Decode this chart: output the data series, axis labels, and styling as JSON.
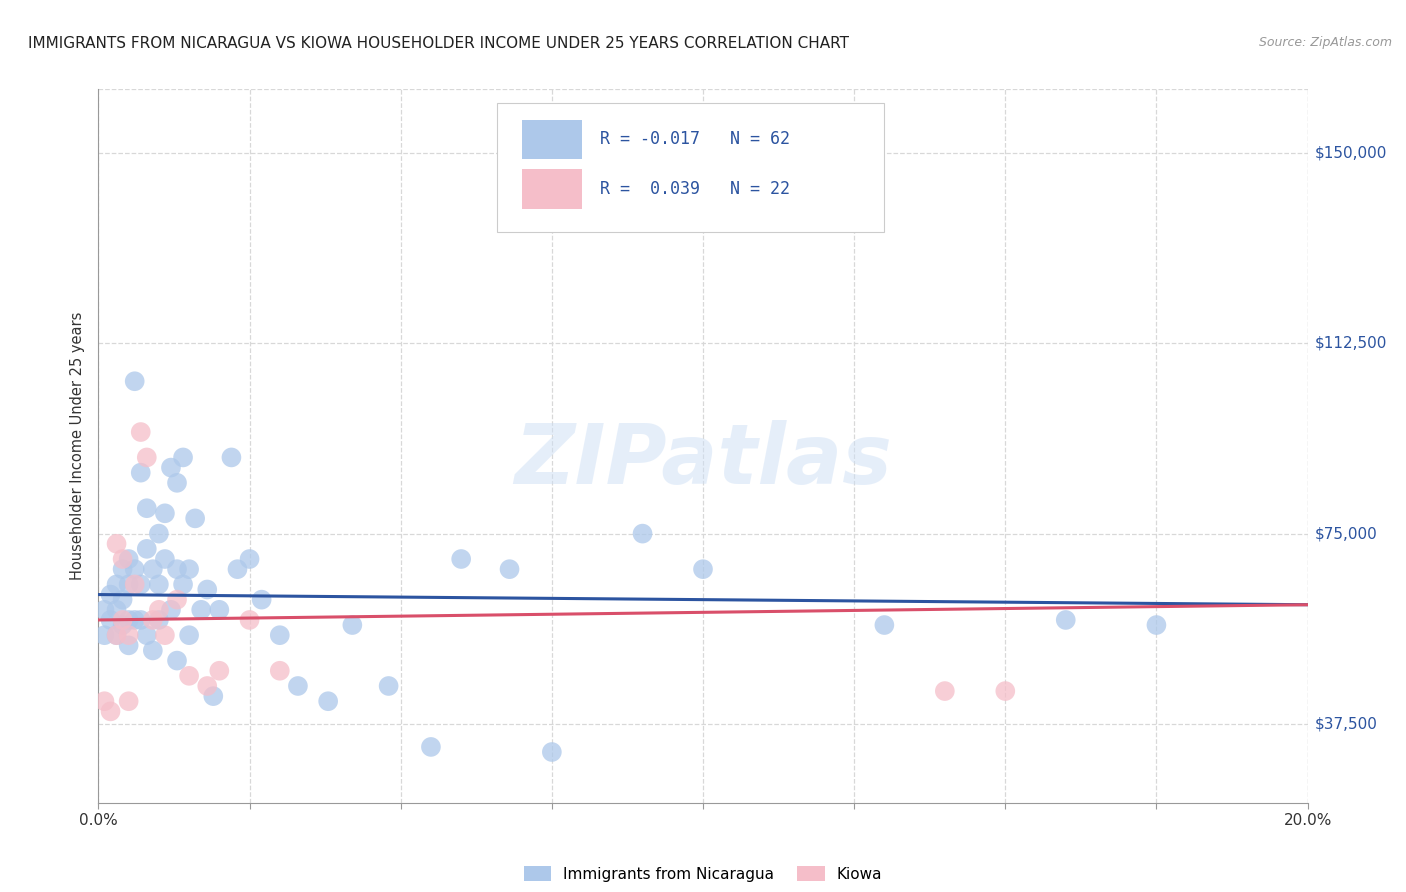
{
  "title": "IMMIGRANTS FROM NICARAGUA VS KIOWA HOUSEHOLDER INCOME UNDER 25 YEARS CORRELATION CHART",
  "source": "Source: ZipAtlas.com",
  "ylabel": "Householder Income Under 25 years",
  "xlim": [
    0.0,
    0.2
  ],
  "ylim": [
    22000,
    162500
  ],
  "yticks": [
    37500,
    75000,
    112500,
    150000
  ],
  "ytick_labels": [
    "$37,500",
    "$75,000",
    "$112,500",
    "$150,000"
  ],
  "xticks": [
    0.0,
    0.025,
    0.05,
    0.075,
    0.1,
    0.125,
    0.15,
    0.175,
    0.2
  ],
  "background_color": "#ffffff",
  "grid_color": "#d8d8d8",
  "series1_color": "#adc8ea",
  "series2_color": "#f5bec9",
  "line1_color": "#2c54a0",
  "line2_color": "#d94f6a",
  "R1": -0.017,
  "N1": 62,
  "R2": 0.039,
  "N2": 22,
  "legend_label1": "Immigrants from Nicaragua",
  "legend_label2": "Kiowa",
  "watermark": "ZIPatlas",
  "series1_x": [
    0.001,
    0.001,
    0.002,
    0.002,
    0.003,
    0.003,
    0.003,
    0.004,
    0.004,
    0.004,
    0.005,
    0.005,
    0.005,
    0.005,
    0.006,
    0.006,
    0.006,
    0.007,
    0.007,
    0.007,
    0.008,
    0.008,
    0.008,
    0.009,
    0.009,
    0.01,
    0.01,
    0.01,
    0.011,
    0.011,
    0.012,
    0.012,
    0.013,
    0.013,
    0.013,
    0.014,
    0.014,
    0.015,
    0.015,
    0.016,
    0.017,
    0.018,
    0.019,
    0.02,
    0.022,
    0.023,
    0.025,
    0.027,
    0.03,
    0.033,
    0.038,
    0.042,
    0.048,
    0.055,
    0.06,
    0.068,
    0.075,
    0.09,
    0.1,
    0.13,
    0.16,
    0.175
  ],
  "series1_y": [
    60000,
    55000,
    63000,
    58000,
    65000,
    60000,
    55000,
    68000,
    62000,
    57000,
    70000,
    65000,
    58000,
    53000,
    105000,
    68000,
    58000,
    87000,
    65000,
    58000,
    80000,
    72000,
    55000,
    68000,
    52000,
    75000,
    65000,
    58000,
    79000,
    70000,
    88000,
    60000,
    85000,
    68000,
    50000,
    90000,
    65000,
    68000,
    55000,
    78000,
    60000,
    64000,
    43000,
    60000,
    90000,
    68000,
    70000,
    62000,
    55000,
    45000,
    42000,
    57000,
    45000,
    33000,
    70000,
    68000,
    32000,
    75000,
    68000,
    57000,
    58000,
    57000
  ],
  "series2_x": [
    0.001,
    0.002,
    0.003,
    0.003,
    0.004,
    0.004,
    0.005,
    0.005,
    0.006,
    0.007,
    0.008,
    0.009,
    0.01,
    0.011,
    0.013,
    0.015,
    0.018,
    0.02,
    0.025,
    0.03,
    0.14,
    0.15
  ],
  "series2_y": [
    42000,
    40000,
    73000,
    55000,
    70000,
    58000,
    55000,
    42000,
    65000,
    95000,
    90000,
    58000,
    60000,
    55000,
    62000,
    47000,
    45000,
    48000,
    58000,
    48000,
    44000,
    44000
  ]
}
